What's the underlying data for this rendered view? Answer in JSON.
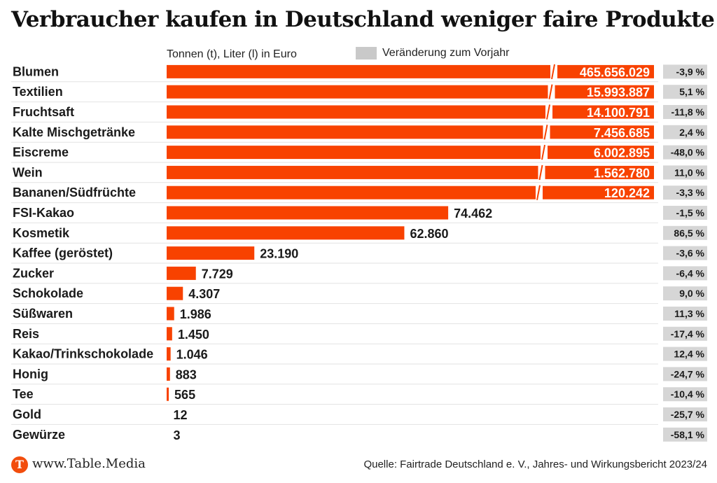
{
  "header": {
    "title": "Verbraucher kaufen in Deutschland weniger faire Produkte",
    "subtitle": "Tonnen (t), Liter (l) in Euro",
    "legend_label": "Veränderung zum Vorjahr"
  },
  "footer": {
    "logo_letter": "T",
    "site": "www.Table.Media",
    "source": "Quelle: Fairtrade Deutschland e. V., Jahres- und Wirkungsbericht 2023/24"
  },
  "colors": {
    "bar": "#f84200",
    "change_box": "#d6d6d6",
    "gridline": "#e2e2e2"
  },
  "chart_data": {
    "type": "bar",
    "orientation": "horizontal",
    "axis_break": true,
    "legend_position": "top",
    "categories": [
      "Blumen",
      "Textilien",
      "Fruchtsaft",
      "Kalte Mischgetränke",
      "Eiscreme",
      "Wein",
      "Bananen/Südfrüchte",
      "FSI-Kakao",
      "Kosmetik",
      "Kaffee (geröstet)",
      "Zucker",
      "Schokolade",
      "Süßwaren",
      "Reis",
      "Kakao/Trinkschokolade",
      "Honig",
      "Tee",
      "Gold",
      "Gewürze"
    ],
    "values": [
      465656029,
      15993887,
      14100791,
      7456685,
      6002895,
      1562780,
      120242,
      74462,
      62860,
      23190,
      7729,
      4307,
      1986,
      1450,
      1046,
      883,
      565,
      12,
      3
    ],
    "value_labels": [
      "465.656.029",
      "15.993.887",
      "14.100.791",
      "7.456.685",
      "6.002.895",
      "1.562.780",
      "120.242",
      "74.462",
      "62.860",
      "23.190",
      "7.729",
      "4.307",
      "1.986",
      "1.450",
      "1.046",
      "883",
      "565",
      "12",
      "3"
    ],
    "changes": [
      "-3,9 %",
      "5,1 %",
      "-11,8 %",
      "2,4 %",
      "-48,0 %",
      "11,0 %",
      "-3,3 %",
      "-1,5 %",
      "86,5 %",
      "-3,6 %",
      "-6,4 %",
      "9,0 %",
      "11,3 %",
      "-17,4 %",
      "12,4 %",
      "-24,7 %",
      "-10,4 %",
      "-25,7 %",
      "-58,1 %"
    ]
  }
}
